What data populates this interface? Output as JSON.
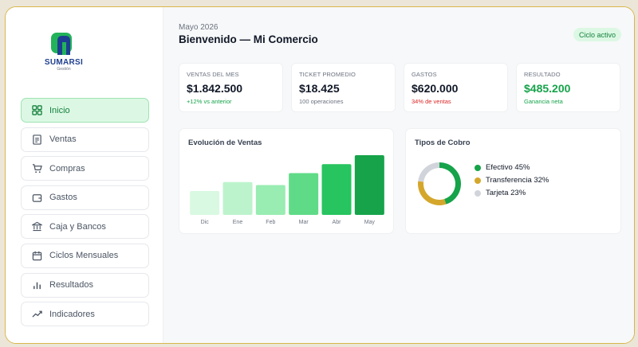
{
  "brand": {
    "name": "SUMARSI",
    "subtitle": "Gestión"
  },
  "sidebar": {
    "items": [
      {
        "label": "Inicio",
        "icon": "grid-icon",
        "active": true
      },
      {
        "label": "Ventas",
        "icon": "receipt-icon",
        "active": false
      },
      {
        "label": "Compras",
        "icon": "cart-icon",
        "active": false
      },
      {
        "label": "Gastos",
        "icon": "wallet-icon",
        "active": false
      },
      {
        "label": "Caja y Bancos",
        "icon": "bank-icon",
        "active": false
      },
      {
        "label": "Ciclos Mensuales",
        "icon": "calendar-icon",
        "active": false
      },
      {
        "label": "Resultados",
        "icon": "bar-chart-icon",
        "active": false
      },
      {
        "label": "Indicadores",
        "icon": "trend-icon",
        "active": false
      }
    ]
  },
  "header": {
    "date": "Mayo 2026",
    "welcome": "Bienvenido — Mi Comercio",
    "status": "Ciclo activo"
  },
  "kpis": [
    {
      "label": "VENTAS DEL MES",
      "value": "$1.842.500",
      "sub": "+12% vs anterior",
      "value_color": "default",
      "sub_color": "green"
    },
    {
      "label": "TICKET PROMEDIO",
      "value": "$18.425",
      "sub": "100 operaciones",
      "value_color": "default",
      "sub_color": "gray"
    },
    {
      "label": "GASTOS",
      "value": "$620.000",
      "sub": "34% de ventas",
      "value_color": "default",
      "sub_color": "red"
    },
    {
      "label": "RESULTADO",
      "value": "$485.200",
      "sub": "Ganancia neta",
      "value_color": "green",
      "sub_color": "green"
    }
  ],
  "sales_panel": {
    "title": "Evolución de Ventas"
  },
  "payments_panel": {
    "title": "Tipos de Cobro"
  },
  "colors": {
    "accent": "#16a34a",
    "gold": "#d4a72c",
    "gray": "#d1d5db",
    "bars": [
      "#d9f9e2",
      "#bdf3cc",
      "#99ecb2",
      "#5fdb87",
      "#27c45f",
      "#16a34a"
    ]
  },
  "chart_data": [
    {
      "type": "bar",
      "title": "Evolución de Ventas",
      "categories": [
        "Dic",
        "Ene",
        "Feb",
        "Mar",
        "Abr",
        "May"
      ],
      "values": [
        40,
        55,
        50,
        70,
        85,
        100
      ],
      "ylim": [
        0,
        100
      ],
      "grid": false
    },
    {
      "type": "pie",
      "title": "Tipos de Cobro",
      "labels": [
        "Efectivo",
        "Transferencia",
        "Tarjeta"
      ],
      "values": [
        45,
        32,
        23
      ],
      "legend_texts": [
        "Efectivo 45%",
        "Transferencia 32%",
        "Tarjeta 23%"
      ],
      "legend": "right"
    }
  ]
}
